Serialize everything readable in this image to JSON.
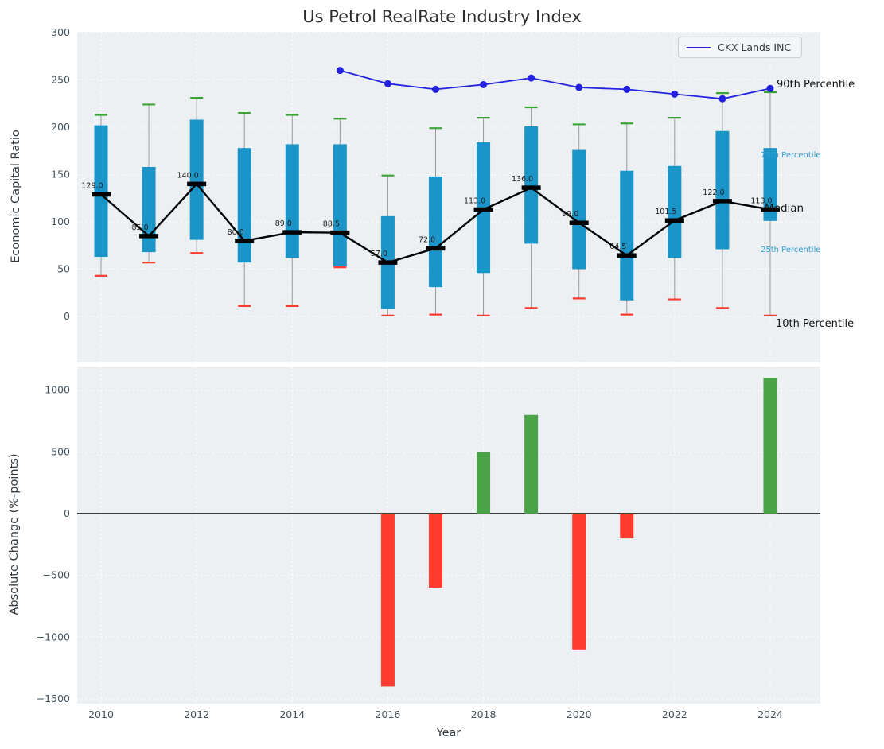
{
  "title": "Us Petrol RealRate Industry Index",
  "legend": {
    "label": "CKX Lands INC"
  },
  "axes": {
    "top_ylabel": "Economic Capital Ratio",
    "bottom_ylabel": "Absolute Change (%-points)",
    "xlabel": "Year"
  },
  "annotations": {
    "p90": "90th Percentile",
    "p75": "75th Percentile",
    "median": "Median",
    "p25": "25th Percentile",
    "p10": "10th Percentile"
  },
  "colors": {
    "plot_bg": "#edf0f2",
    "grid": "#ffffff",
    "tick": "#43525c",
    "box": "#1b95c8",
    "whisker": "#999999",
    "cap_top": "#3aa435",
    "cap_bottom": "#ff3b30",
    "median": "#000000",
    "company_line": "#2222e0",
    "bar_positive": "#4aa347",
    "bar_negative": "#ff3b30"
  },
  "chart_data": [
    {
      "type": "boxplot-line",
      "title": "Us Petrol RealRate Industry Index",
      "ylabel": "Economic Capital Ratio",
      "ylim": [
        -48,
        300
      ],
      "yticks": [
        0,
        50,
        100,
        150,
        200,
        250,
        300
      ],
      "grid": true,
      "legend_position": "upper right",
      "categories": [
        2010,
        2011,
        2012,
        2013,
        2014,
        2015,
        2016,
        2017,
        2018,
        2019,
        2020,
        2021,
        2022,
        2023,
        2024
      ],
      "series": [
        {
          "name": "10th Percentile",
          "values": [
            43,
            57,
            67,
            11,
            11,
            52,
            1,
            2,
            1,
            9,
            19,
            2,
            18,
            9,
            1
          ]
        },
        {
          "name": "25th Percentile",
          "values": [
            63,
            68,
            81,
            57,
            62,
            53,
            8,
            31,
            46,
            77,
            50,
            17,
            62,
            71,
            101
          ]
        },
        {
          "name": "Median",
          "values": [
            129,
            85,
            140,
            80,
            89,
            88.5,
            57,
            72,
            113,
            136,
            99,
            64.5,
            101.5,
            122,
            113
          ]
        },
        {
          "name": "75th Percentile",
          "values": [
            202,
            158,
            208,
            178,
            182,
            182,
            106,
            148,
            184,
            201,
            176,
            154,
            159,
            196,
            178
          ]
        },
        {
          "name": "90th Percentile",
          "values": [
            213,
            224,
            231,
            215,
            213,
            209,
            149,
            199,
            210,
            221,
            203,
            204,
            210,
            236,
            237
          ]
        }
      ],
      "median_labels": [
        "129.0",
        "85.0",
        "140.0",
        "80.0",
        "89.0",
        "88.5",
        "57.0",
        "72.0",
        "113.0",
        "136.0",
        "99.0",
        "64.5",
        "101.5",
        "122.0",
        "113.0"
      ],
      "company_line": {
        "name": "CKX Lands INC",
        "years": [
          2015,
          2016,
          2017,
          2018,
          2019,
          2020,
          2021,
          2022,
          2023,
          2024
        ],
        "values": [
          260,
          246,
          240,
          245,
          252,
          242,
          240,
          235,
          230,
          241
        ]
      }
    },
    {
      "type": "bar",
      "xlabel": "Year",
      "ylabel": "Absolute Change (%-points)",
      "ylim": [
        -1540,
        1200
      ],
      "yticks": [
        -1500,
        -1000,
        -500,
        0,
        500,
        1000
      ],
      "grid": true,
      "categories": [
        2010,
        2011,
        2012,
        2013,
        2014,
        2015,
        2016,
        2017,
        2018,
        2019,
        2020,
        2021,
        2022,
        2023,
        2024
      ],
      "values": [
        0,
        0,
        0,
        0,
        0,
        0,
        -1400,
        -600,
        500,
        800,
        -1100,
        -200,
        0,
        0,
        1100
      ]
    }
  ]
}
